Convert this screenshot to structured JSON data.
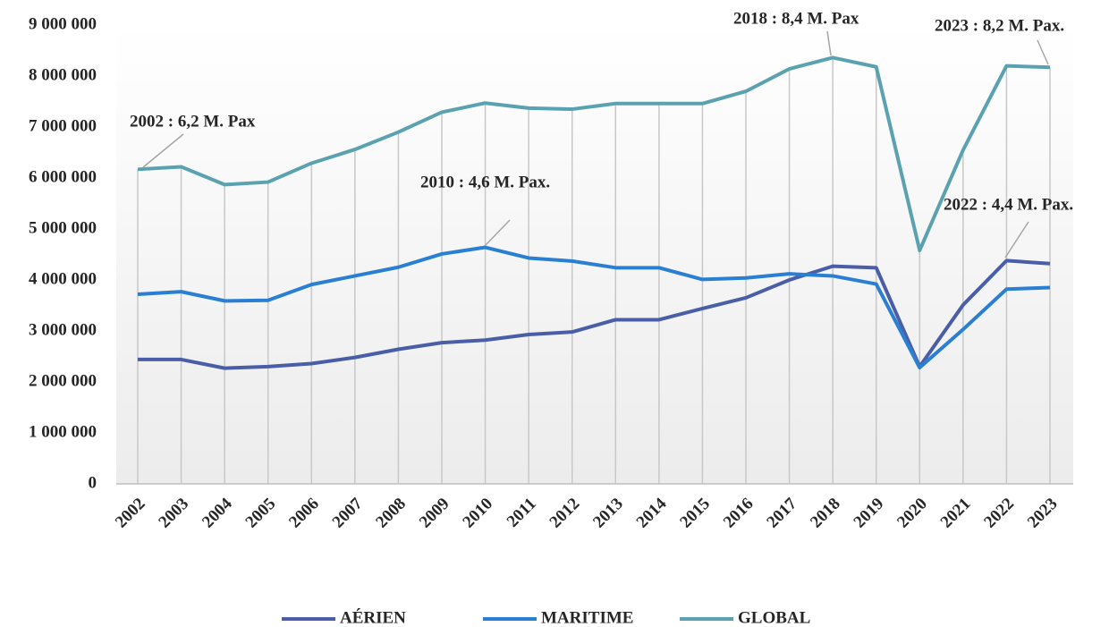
{
  "chart_data": {
    "type": "line",
    "categories": [
      "2002",
      "2003",
      "2004",
      "2005",
      "2006",
      "2007",
      "2008",
      "2009",
      "2010",
      "2011",
      "2012",
      "2013",
      "2014",
      "2015",
      "2016",
      "2017",
      "2018",
      "2019",
      "2020",
      "2021",
      "2022",
      "2023"
    ],
    "series": [
      {
        "name": "AÉRIEN",
        "color": "#4a5ea8",
        "values": [
          2440000,
          2440000,
          2270000,
          2300000,
          2360000,
          2480000,
          2640000,
          2770000,
          2820000,
          2930000,
          2980000,
          3220000,
          3220000,
          3440000,
          3650000,
          4000000,
          4270000,
          4240000,
          2300000,
          3510000,
          4380000,
          4320000
        ]
      },
      {
        "name": "MARITIME",
        "color": "#2b7fd3",
        "values": [
          3720000,
          3770000,
          3590000,
          3600000,
          3910000,
          4080000,
          4250000,
          4510000,
          4640000,
          4430000,
          4370000,
          4240000,
          4240000,
          4010000,
          4040000,
          4120000,
          4080000,
          3920000,
          2280000,
          3030000,
          3820000,
          3850000
        ]
      },
      {
        "name": "GLOBAL",
        "color": "#5aa2b0",
        "values": [
          6170000,
          6220000,
          5870000,
          5920000,
          6290000,
          6560000,
          6900000,
          7290000,
          7470000,
          7370000,
          7350000,
          7460000,
          7460000,
          7460000,
          7700000,
          8140000,
          8360000,
          8180000,
          4580000,
          6550000,
          8200000,
          8170000
        ]
      }
    ],
    "ylim": [
      0,
      9000000
    ],
    "yticks": [
      0,
      {
        "value": 1000000,
        "label": "1 000 000"
      },
      {
        "value": 2000000,
        "label": "2 000 000"
      },
      {
        "value": 3000000,
        "label": "3 000 000"
      },
      {
        "value": 4000000,
        "label": "4 000 000"
      },
      {
        "value": 5000000,
        "label": "5 000 000"
      },
      {
        "value": 6000000,
        "label": "6 000 000"
      },
      {
        "value": 7000000,
        "label": "7 000 000"
      },
      {
        "value": 8000000,
        "label": "8 000 000"
      },
      {
        "value": 9000000,
        "label": "9 000 000"
      }
    ],
    "annotations": [
      "2002 : 6,2 M. Pax",
      "2010 : 4,6 M. Pax.",
      "2018 : 8,4 M. Pax",
      "2023 : 8,2 M. Pax.",
      "2022 : 4,4 M. Pax."
    ],
    "legend": "bottom"
  }
}
